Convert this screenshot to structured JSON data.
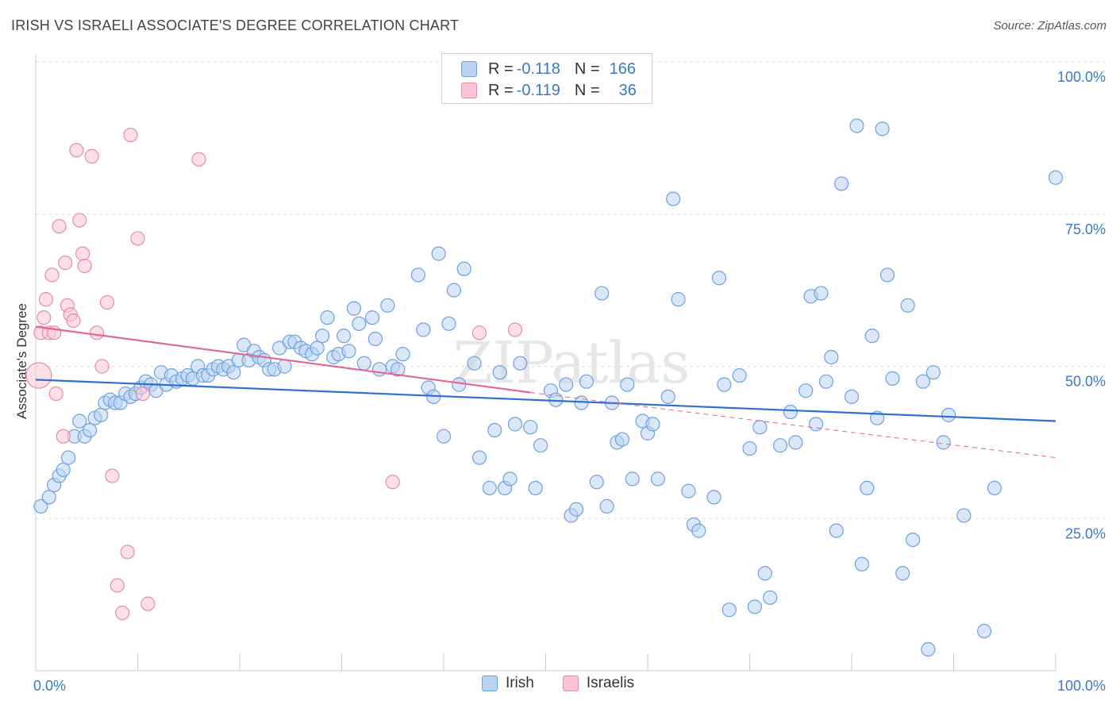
{
  "header": {
    "title": "IRISH VS ISRAELI ASSOCIATE'S DEGREE CORRELATION CHART",
    "source": "Source: ZipAtlas.com"
  },
  "legend": {
    "rows": [
      {
        "r_label": "R =",
        "r_value": "-0.118",
        "n_label": "N =",
        "n_value": "166"
      },
      {
        "r_label": "R =",
        "r_value": "-0.119",
        "n_label": "N =",
        "n_value": "36"
      }
    ]
  },
  "watermark": "ZIPatlas",
  "chart_data": {
    "type": "scatter",
    "ylabel": "Associate's Degree",
    "xlim": [
      0,
      100
    ],
    "ylim": [
      0,
      100
    ],
    "x_tick_labels": [
      "0.0%",
      "100.0%"
    ],
    "y_ticks": [
      {
        "value": 25,
        "label": "25.0%"
      },
      {
        "value": 50,
        "label": "50.0%"
      },
      {
        "value": 75,
        "label": "75.0%"
      },
      {
        "value": 100,
        "label": "100.0%"
      }
    ],
    "grid": true,
    "colors": {
      "irish_fill": "#b9d3f4",
      "irish_stroke": "#6fa0de",
      "irish_line": "#2f6fd0",
      "israeli_fill": "#f9c4d4",
      "israeli_stroke": "#e98aa8",
      "israeli_line": "#e0678f",
      "axis_label": "#3a78c9"
    },
    "series": [
      {
        "name": "Irish",
        "trend": {
          "x0": 0,
          "y0": 47.8,
          "x1": 100,
          "y1": 41.0
        },
        "points": [
          [
            0.5,
            27
          ],
          [
            1.3,
            28.5
          ],
          [
            1.8,
            30.5
          ],
          [
            2.3,
            32
          ],
          [
            2.7,
            33
          ],
          [
            3.2,
            35
          ],
          [
            3.8,
            38.5
          ],
          [
            4.3,
            41
          ],
          [
            4.8,
            38.5
          ],
          [
            5.3,
            39.5
          ],
          [
            5.8,
            41.5
          ],
          [
            6.4,
            42
          ],
          [
            6.8,
            44
          ],
          [
            7.3,
            44.5
          ],
          [
            7.8,
            44
          ],
          [
            8.3,
            44
          ],
          [
            8.8,
            45.5
          ],
          [
            9.3,
            45
          ],
          [
            9.8,
            45.5
          ],
          [
            10.3,
            46.5
          ],
          [
            10.8,
            47.5
          ],
          [
            11.3,
            47
          ],
          [
            11.8,
            46
          ],
          [
            12.3,
            49
          ],
          [
            12.8,
            47
          ],
          [
            13.3,
            48.5
          ],
          [
            13.8,
            47.5
          ],
          [
            14.4,
            48
          ],
          [
            14.9,
            48.5
          ],
          [
            15.4,
            48
          ],
          [
            15.9,
            50
          ],
          [
            16.4,
            48.5
          ],
          [
            16.9,
            48.5
          ],
          [
            17.4,
            49.5
          ],
          [
            17.9,
            50
          ],
          [
            18.4,
            49.5
          ],
          [
            18.9,
            50
          ],
          [
            19.4,
            49
          ],
          [
            19.9,
            51
          ],
          [
            20.4,
            53.5
          ],
          [
            20.9,
            51
          ],
          [
            21.4,
            52.5
          ],
          [
            21.9,
            51.5
          ],
          [
            22.4,
            51
          ],
          [
            22.9,
            49.5
          ],
          [
            23.4,
            49.5
          ],
          [
            23.9,
            53
          ],
          [
            24.4,
            50
          ],
          [
            24.9,
            54
          ],
          [
            25.4,
            54
          ],
          [
            26.0,
            53
          ],
          [
            26.5,
            52.5
          ],
          [
            27.1,
            52
          ],
          [
            27.6,
            53
          ],
          [
            28.1,
            55
          ],
          [
            28.6,
            58
          ],
          [
            29.2,
            51.5
          ],
          [
            29.7,
            52
          ],
          [
            30.2,
            55
          ],
          [
            30.7,
            52.5
          ],
          [
            31.2,
            59.5
          ],
          [
            31.7,
            57
          ],
          [
            32.2,
            50.5
          ],
          [
            33.0,
            58
          ],
          [
            33.3,
            54.5
          ],
          [
            33.7,
            49.5
          ],
          [
            34.5,
            60
          ],
          [
            35.0,
            50
          ],
          [
            35.5,
            49.5
          ],
          [
            36.0,
            52
          ],
          [
            37.5,
            65
          ],
          [
            38.0,
            56
          ],
          [
            38.5,
            46.5
          ],
          [
            39.0,
            45
          ],
          [
            39.5,
            68.5
          ],
          [
            40.0,
            38.5
          ],
          [
            40.5,
            57
          ],
          [
            41.0,
            62.5
          ],
          [
            41.5,
            47
          ],
          [
            42.0,
            66
          ],
          [
            43.0,
            50.5
          ],
          [
            43.5,
            35
          ],
          [
            44.5,
            30
          ],
          [
            45.0,
            39.5
          ],
          [
            45.5,
            49
          ],
          [
            46.0,
            30
          ],
          [
            46.5,
            31.5
          ],
          [
            47.0,
            40.5
          ],
          [
            47.5,
            50.5
          ],
          [
            48.5,
            40
          ],
          [
            49.0,
            30
          ],
          [
            49.5,
            37
          ],
          [
            50.5,
            46
          ],
          [
            51.0,
            44.5
          ],
          [
            52.0,
            47
          ],
          [
            52.5,
            25.5
          ],
          [
            53.0,
            26.5
          ],
          [
            53.5,
            44
          ],
          [
            54.0,
            47.5
          ],
          [
            55.0,
            31
          ],
          [
            55.5,
            62
          ],
          [
            56.0,
            27
          ],
          [
            56.5,
            44
          ],
          [
            57.0,
            37.5
          ],
          [
            57.5,
            38
          ],
          [
            58.0,
            47
          ],
          [
            58.5,
            31.5
          ],
          [
            59.5,
            41
          ],
          [
            60.0,
            39
          ],
          [
            60.5,
            40.5
          ],
          [
            61.0,
            31.5
          ],
          [
            62.0,
            45
          ],
          [
            62.5,
            77.5
          ],
          [
            63.0,
            61
          ],
          [
            64.0,
            29.5
          ],
          [
            64.5,
            24
          ],
          [
            65.0,
            23
          ],
          [
            66.5,
            28.5
          ],
          [
            67.0,
            64.5
          ],
          [
            67.5,
            47
          ],
          [
            68.0,
            10
          ],
          [
            69.0,
            48.5
          ],
          [
            70.0,
            36.5
          ],
          [
            70.5,
            10.5
          ],
          [
            71.0,
            40
          ],
          [
            71.5,
            16
          ],
          [
            72.0,
            12
          ],
          [
            73.0,
            37
          ],
          [
            74.0,
            42.5
          ],
          [
            74.5,
            37.5
          ],
          [
            75.5,
            46
          ],
          [
            76.0,
            61.5
          ],
          [
            76.5,
            40.5
          ],
          [
            77.0,
            62
          ],
          [
            77.5,
            47.5
          ],
          [
            78.0,
            51.5
          ],
          [
            78.5,
            23
          ],
          [
            79.0,
            80
          ],
          [
            80.0,
            45
          ],
          [
            80.5,
            89.5
          ],
          [
            81.0,
            17.5
          ],
          [
            81.5,
            30
          ],
          [
            82.0,
            55
          ],
          [
            82.5,
            41.5
          ],
          [
            83.0,
            89
          ],
          [
            83.5,
            65
          ],
          [
            84.0,
            48
          ],
          [
            85.0,
            16
          ],
          [
            85.5,
            60
          ],
          [
            86.0,
            21.5
          ],
          [
            87.0,
            47.5
          ],
          [
            87.5,
            3.5
          ],
          [
            88.0,
            49
          ],
          [
            89.0,
            37.5
          ],
          [
            89.5,
            42
          ],
          [
            91.0,
            25.5
          ],
          [
            93.0,
            6.5
          ],
          [
            94.0,
            30
          ],
          [
            100.0,
            81
          ]
        ]
      },
      {
        "name": "Israelis",
        "trend": {
          "x0": 0,
          "y0": 56.5,
          "x1": 48.5,
          "y1": 45.7,
          "dash_to_x": 100,
          "dash_to_y": 35.0
        },
        "points": [
          [
            0.3,
            48.5
          ],
          [
            0.5,
            55.5
          ],
          [
            0.8,
            58
          ],
          [
            1.0,
            61
          ],
          [
            1.3,
            55.5
          ],
          [
            1.6,
            65
          ],
          [
            1.8,
            55.5
          ],
          [
            2.0,
            45.5
          ],
          [
            2.3,
            73
          ],
          [
            2.7,
            38.5
          ],
          [
            2.9,
            67
          ],
          [
            3.1,
            60
          ],
          [
            3.4,
            58.5
          ],
          [
            3.7,
            57.5
          ],
          [
            4.0,
            85.5
          ],
          [
            4.3,
            74
          ],
          [
            4.6,
            68.5
          ],
          [
            4.8,
            66.5
          ],
          [
            5.5,
            84.5
          ],
          [
            6.0,
            55.5
          ],
          [
            6.5,
            50
          ],
          [
            7.0,
            60.5
          ],
          [
            7.5,
            32
          ],
          [
            8.0,
            14
          ],
          [
            8.5,
            9.5
          ],
          [
            9.0,
            19.5
          ],
          [
            9.3,
            88
          ],
          [
            10.0,
            71
          ],
          [
            10.5,
            45.5
          ],
          [
            11.0,
            11
          ],
          [
            16.0,
            84
          ],
          [
            35.0,
            31
          ],
          [
            43.5,
            55.5
          ],
          [
            47.0,
            56
          ]
        ]
      }
    ]
  },
  "bottom_legend": [
    "Irish",
    "Israelis"
  ]
}
